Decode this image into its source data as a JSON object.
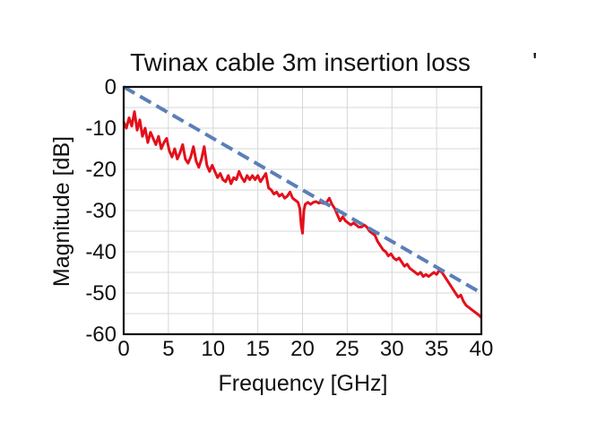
{
  "chart_data": {
    "type": "line",
    "title": "Twinax cable 3m insertion loss",
    "xlabel": "Frequency [GHz]",
    "ylabel": "Magnitude [dB]",
    "xlim": [
      0,
      40
    ],
    "ylim": [
      -60,
      0
    ],
    "xticks": [
      0,
      5,
      10,
      15,
      20,
      25,
      30,
      35,
      40
    ],
    "yticks": [
      0,
      -10,
      -20,
      -30,
      -40,
      -50,
      -60
    ],
    "grid": true,
    "colors": {
      "measured": "#e3101b",
      "fit": "#5b7fb8"
    },
    "series": [
      {
        "style": "solid",
        "x": [
          0,
          0.3,
          0.6,
          0.9,
          1.2,
          1.5,
          1.8,
          2.1,
          2.4,
          2.7,
          3.0,
          3.3,
          3.6,
          3.9,
          4.2,
          4.5,
          4.8,
          5.1,
          5.4,
          5.7,
          6.0,
          6.3,
          6.6,
          6.9,
          7.2,
          7.5,
          7.8,
          8.1,
          8.4,
          8.7,
          9.0,
          9.3,
          9.6,
          9.9,
          10.2,
          10.5,
          10.8,
          11.1,
          11.4,
          11.7,
          12.0,
          12.3,
          12.6,
          12.9,
          13.2,
          13.5,
          13.8,
          14.1,
          14.4,
          14.7,
          15.0,
          15.3,
          15.6,
          15.9,
          16.2,
          16.5,
          16.8,
          17.1,
          17.4,
          17.7,
          18.0,
          18.3,
          18.6,
          18.9,
          19.2,
          19.5,
          19.7,
          19.85,
          20.0,
          20.15,
          20.3,
          20.6,
          20.9,
          21.2,
          21.5,
          21.8,
          22.1,
          22.4,
          22.7,
          23.0,
          23.3,
          23.6,
          23.9,
          24.2,
          24.5,
          24.8,
          25.1,
          25.4,
          25.7,
          26.0,
          26.3,
          26.6,
          26.9,
          27.2,
          27.5,
          27.8,
          28.1,
          28.4,
          28.7,
          29.0,
          29.3,
          29.6,
          29.9,
          30.2,
          30.5,
          30.8,
          31.1,
          31.4,
          31.7,
          32.0,
          32.3,
          32.6,
          32.9,
          33.2,
          33.5,
          33.8,
          34.1,
          34.4,
          34.7,
          35.0,
          35.3,
          35.6,
          35.9,
          36.2,
          36.5,
          36.8,
          37.1,
          37.4,
          37.7,
          38.0,
          38.3,
          38.6,
          38.9,
          39.2,
          39.5,
          39.8,
          40.0
        ],
        "values": [
          -8.5,
          -10.0,
          -7.5,
          -9.5,
          -6.0,
          -10.5,
          -8.0,
          -12.0,
          -10.0,
          -13.5,
          -11.0,
          -12.5,
          -14.0,
          -12.0,
          -15.0,
          -13.5,
          -12.5,
          -15.5,
          -17.0,
          -15.0,
          -17.5,
          -16.0,
          -14.0,
          -17.5,
          -18.5,
          -17.0,
          -14.5,
          -18.0,
          -19.5,
          -17.5,
          -14.5,
          -19.0,
          -20.5,
          -19.0,
          -20.5,
          -22.0,
          -21.0,
          -22.5,
          -23.0,
          -21.5,
          -23.5,
          -22.0,
          -22.5,
          -20.5,
          -22.0,
          -23.0,
          -21.5,
          -22.5,
          -21.5,
          -22.5,
          -21.5,
          -23.0,
          -22.0,
          -21.0,
          -24.5,
          -25.0,
          -26.0,
          -25.5,
          -26.5,
          -26.0,
          -27.0,
          -26.5,
          -25.5,
          -27.0,
          -27.5,
          -28.0,
          -29.5,
          -33.5,
          -35.5,
          -30.0,
          -28.5,
          -28.0,
          -28.5,
          -28.0,
          -27.8,
          -28.2,
          -28.0,
          -28.3,
          -28.0,
          -27.0,
          -28.5,
          -29.5,
          -31.0,
          -32.5,
          -31.5,
          -32.5,
          -33.0,
          -33.5,
          -33.0,
          -33.5,
          -34.0,
          -34.0,
          -33.5,
          -34.0,
          -35.0,
          -35.5,
          -36.0,
          -37.5,
          -38.5,
          -39.5,
          -40.0,
          -41.0,
          -40.5,
          -41.5,
          -42.0,
          -41.5,
          -42.5,
          -43.5,
          -43.0,
          -44.0,
          -44.5,
          -45.0,
          -45.5,
          -45.0,
          -46.0,
          -45.5,
          -46.0,
          -45.5,
          -45.0,
          -45.5,
          -44.5,
          -45.0,
          -46.0,
          -47.0,
          -48.0,
          -49.0,
          -50.0,
          -51.0,
          -50.5,
          -52.0,
          -53.0,
          -53.5,
          -54.0,
          -54.5,
          -55.0,
          -55.5,
          -56.0
        ]
      },
      {
        "style": "dashed",
        "x": [
          0,
          40
        ],
        "values": [
          0,
          -50
        ]
      }
    ]
  }
}
